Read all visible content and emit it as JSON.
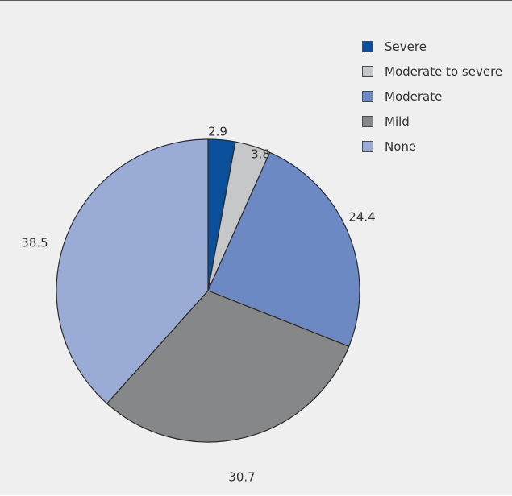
{
  "chart_data": {
    "type": "pie",
    "categories": [
      "Severe",
      "Moderate to severe",
      "Moderate",
      "Mild",
      "None"
    ],
    "values": [
      2.9,
      3.8,
      24.4,
      30.7,
      38.5
    ],
    "value_labels": [
      "2.9",
      "3.8",
      "24.4",
      "30.7",
      "38.5"
    ],
    "colors": [
      "#0a4f99",
      "#c5c7c9",
      "#6c89c4",
      "#858789",
      "#9aacd6"
    ],
    "start": "12 o'clock",
    "direction": "clockwise",
    "legend_position": "top-right",
    "title": ""
  }
}
